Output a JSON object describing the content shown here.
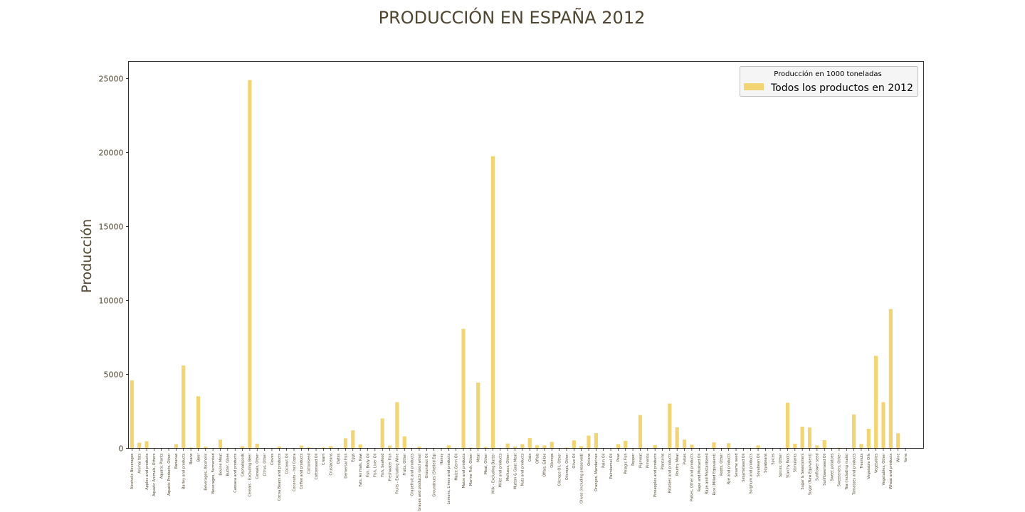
{
  "colors": {
    "bar": "#f3d472",
    "text": "#4f4530",
    "axis": "#000000",
    "legend_bg": "#f5f5f5",
    "legend_border": "#bfbfbf"
  },
  "chart_data": {
    "type": "bar",
    "title": "PRODUCCIÓN EN ESPAÑA 2012",
    "xlabel": "",
    "ylabel": "Producción",
    "ylim": [
      0,
      26150
    ],
    "yticks": [
      0,
      5000,
      10000,
      15000,
      20000,
      25000
    ],
    "grid": false,
    "legend": {
      "title": "Producción en 1000 toneladas",
      "placement": "top-right",
      "entries": [
        "Todos los productos en 2012"
      ]
    },
    "series": [
      {
        "name": "Todos los productos en 2012"
      }
    ],
    "categories": [
      "Alcoholic Beverages",
      "Animal fats",
      "Apples and products",
      "Aquatic Animals, Others",
      "Aquatic Plants",
      "Aquatic Products, Other",
      "Bananas",
      "Barley and products",
      "Beans",
      "Beer",
      "Beverages, Alcoholic",
      "Beverages, Fermented",
      "Bovine Meat",
      "Butter, Ghee",
      "Cassava and products",
      "Cephalopods",
      "Cereals - Excluding Beer",
      "Cereals, Other",
      "Citrus, Other",
      "Cloves",
      "Cocoa Beans and products",
      "Coconut Oil",
      "Coconuts - Incl Copra",
      "Coffee and products",
      "Cottonseed",
      "Cottonseed Oil",
      "Cream",
      "Crustaceans",
      "Dates",
      "Demersal Fish",
      "Eggs",
      "Fats, Animals, Raw",
      "Fish, Body Oil",
      "Fish, Liver Oil",
      "Fish, Seafood",
      "Freshwater Fish",
      "Fruits - Excluding Wine",
      "Fruits, Other",
      "Grapefruit and products",
      "Grapes and products (excl wine)",
      "Groundnut Oil",
      "Groundnuts (Shelled Eq)",
      "Honey",
      "Lemons, Limes and products",
      "Maize Germ Oil",
      "Maize and products",
      "Marine Fish, Other",
      "Meat",
      "Meat, Other",
      "Milk - Excluding Butter",
      "Millet and products",
      "Molluscs, Other",
      "Mutton & Goat Meat",
      "Nuts and products",
      "Oats",
      "Offals",
      "Offals, Edible",
      "Oilcrops",
      "Oilcrops Oil, Other",
      "Oilcrops, Other",
      "Olive Oil",
      "Olives (including preserved)",
      "Onions",
      "Oranges, Mandarines",
      "Palm Oil",
      "Palmkernel Oil",
      "Peas",
      "Pelagic Fish",
      "Pepper",
      "Pigmeat",
      "Pimento",
      "Pineapples and products",
      "Plantains",
      "Potatoes and products",
      "Poultry Meat",
      "Pulses",
      "Pulses, Other and products",
      "Rape and Mustard Oil",
      "Rape and Mustardseed",
      "Rice (Milled Equivalent)",
      "Roots, Other",
      "Rye and products",
      "Sesame seed",
      "Sesameseed Oil",
      "Sorghum and products",
      "Soyabean Oil",
      "Soyabeans",
      "Spices",
      "Spices, Other",
      "Starchy Roots",
      "Stimulants",
      "Sugar & Sweeteners",
      "Sugar (Raw Equivalent)",
      "Sunflower seed",
      "Sunflowerseed Oil",
      "Sweet potatoes",
      "Sweeteners, Other",
      "Tea (including mate)",
      "Tomatoes and products",
      "Treenuts",
      "Vegetable Oils",
      "Vegetables",
      "Vegetables, Other",
      "Wheat and products",
      "Wine",
      "Yams"
    ],
    "values": [
      4600,
      380,
      480,
      10,
      10,
      10,
      290,
      5600,
      60,
      3520,
      110,
      0,
      590,
      40,
      20,
      140,
      24900,
      320,
      30,
      0,
      130,
      0,
      20,
      190,
      70,
      10,
      60,
      150,
      0,
      680,
      1220,
      260,
      20,
      10,
      2020,
      190,
      3120,
      810,
      30,
      120,
      0,
      30,
      20,
      200,
      10,
      8080,
      60,
      4450,
      90,
      19750,
      10,
      330,
      120,
      290,
      690,
      200,
      200,
      440,
      20,
      60,
      540,
      150,
      860,
      1030,
      0,
      0,
      280,
      510,
      0,
      2250,
      0,
      220,
      0,
      3030,
      1420,
      590,
      250,
      10,
      0,
      400,
      0,
      350,
      0,
      0,
      30,
      200,
      0,
      0,
      0,
      3080,
      320,
      1470,
      1410,
      200,
      550,
      10,
      50,
      0,
      2290,
      300,
      1320,
      6250,
      3120,
      9420,
      1020,
      0
    ]
  }
}
